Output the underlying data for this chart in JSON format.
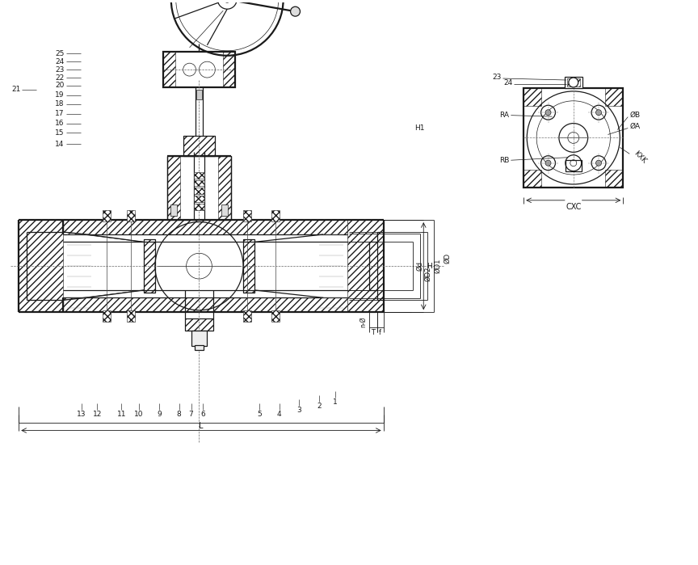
{
  "bg_color": "#ffffff",
  "lc": "#1a1a1a",
  "lw_thick": 1.6,
  "lw_main": 0.9,
  "lw_thin": 0.5,
  "lw_dim": 0.6,
  "dim_labels": {
    "L": "L",
    "H": "H",
    "H1": "H1",
    "phid": "Ød",
    "phiD2": "ØD2",
    "phiD1": "ØD1",
    "phiD": "ØD",
    "T": "T",
    "f": "f",
    "n_phi": "n-Ø",
    "CxC": "CXC",
    "RA": "RA",
    "RB": "RB",
    "phiB": "ØB",
    "phiA": "ØA",
    "KxK": "KXK"
  }
}
